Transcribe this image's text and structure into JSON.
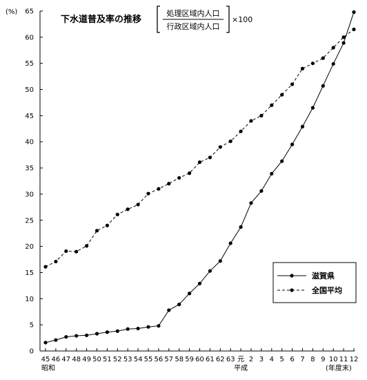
{
  "chart_data": {
    "type": "line",
    "title": "下水道普及率の推移",
    "formula": {
      "numerator": "処理区域内人口",
      "denominator": "行政区域内人口",
      "multiplier": "×100"
    },
    "ylabel": "(%)",
    "xlabel": "(年度末)",
    "era_labels": [
      {
        "text": "昭和",
        "at": "45"
      },
      {
        "text": "平成",
        "at": "元"
      }
    ],
    "ylim": [
      0,
      65
    ],
    "yticks": [
      0,
      5,
      10,
      15,
      20,
      25,
      30,
      35,
      40,
      45,
      50,
      55,
      60,
      65
    ],
    "categories": [
      "45",
      "46",
      "47",
      "48",
      "49",
      "50",
      "51",
      "52",
      "53",
      "54",
      "55",
      "56",
      "57",
      "58",
      "59",
      "60",
      "61",
      "62",
      "63",
      "元",
      "2",
      "3",
      "4",
      "5",
      "6",
      "7",
      "8",
      "9",
      "10",
      "11",
      "12"
    ],
    "series": [
      {
        "name": "滋賀県",
        "style": "solid",
        "values": [
          1.6,
          2.1,
          2.7,
          2.9,
          3.0,
          3.3,
          3.6,
          3.8,
          4.2,
          4.3,
          4.6,
          4.8,
          7.8,
          8.9,
          11.0,
          12.9,
          15.3,
          17.2,
          20.6,
          23.7,
          28.3,
          30.6,
          33.9,
          36.3,
          39.5,
          42.9,
          46.5,
          50.7,
          54.9,
          58.9,
          64.8
        ]
      },
      {
        "name": "全国平均",
        "style": "dashed",
        "values": [
          16.1,
          17.1,
          19.1,
          19.0,
          20.1,
          23.0,
          24.0,
          26.1,
          27.1,
          28.0,
          30.1,
          31.0,
          32.0,
          33.1,
          34.0,
          36.1,
          37.0,
          39.0,
          40.1,
          42.0,
          44.0,
          45.0,
          47.0,
          49.0,
          51.0,
          54.0,
          55.0,
          56.0,
          58.0,
          60.0,
          61.5
        ]
      }
    ],
    "legend_position": "bottom-right",
    "grid": false
  }
}
